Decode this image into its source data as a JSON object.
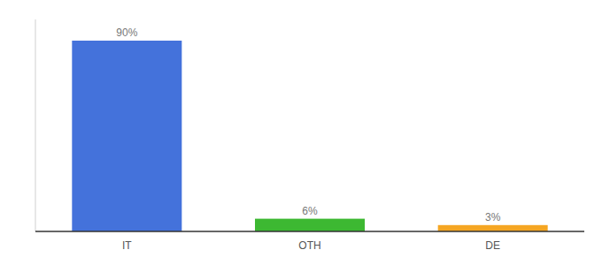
{
  "chart_data": {
    "type": "bar",
    "categories": [
      "IT",
      "OTH",
      "DE"
    ],
    "values": [
      90,
      6,
      3
    ],
    "colors": [
      "#4472db",
      "#3db832",
      "#f5a623"
    ],
    "value_labels": [
      "90%",
      "6%",
      "3%"
    ],
    "data_labels": true,
    "ylim": [
      0,
      100
    ],
    "tick_labels": "x",
    "grid": false
  }
}
